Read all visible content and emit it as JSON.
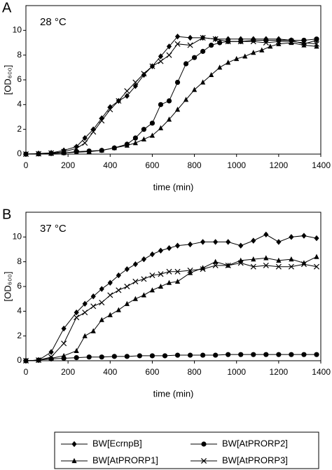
{
  "chart_data": [
    {
      "type": "line",
      "panel": "A",
      "annotation": "28 °C",
      "xlabel": "time (min)",
      "ylabel": "[OD₆₀₀]",
      "xlim": [
        0,
        1400
      ],
      "ylim": [
        0,
        12
      ],
      "xticks": [
        0,
        200,
        400,
        600,
        800,
        1000,
        1200,
        1400
      ],
      "yticks": [
        0,
        2,
        4,
        6,
        8,
        10
      ],
      "series": [
        {
          "name": "BW[EcrnpB]",
          "color": "#000000",
          "marker": "diamond",
          "x": [
            0,
            60,
            120,
            180,
            240,
            280,
            320,
            360,
            400,
            440,
            480,
            520,
            560,
            600,
            640,
            680,
            720,
            780,
            840,
            900,
            960,
            1020,
            1080,
            1140,
            1200,
            1260,
            1320,
            1380
          ],
          "values": [
            0,
            0.05,
            0.1,
            0.3,
            0.6,
            1.3,
            2.0,
            2.9,
            3.8,
            4.3,
            4.7,
            5.5,
            6.4,
            7.1,
            7.9,
            8.7,
            9.5,
            9.4,
            9.4,
            9.3,
            9.3,
            9.3,
            9.3,
            9.3,
            9.3,
            9.2,
            8.9,
            9.2
          ]
        },
        {
          "name": "BW[AtPRORP2]",
          "color": "#000000",
          "marker": "circle",
          "x": [
            0,
            60,
            120,
            180,
            240,
            300,
            360,
            420,
            480,
            520,
            560,
            600,
            640,
            680,
            720,
            760,
            800,
            840,
            880,
            920,
            960,
            1020,
            1080,
            1140,
            1200,
            1260,
            1320,
            1380
          ],
          "values": [
            0,
            0.02,
            0.05,
            0.1,
            0.2,
            0.25,
            0.3,
            0.5,
            0.8,
            1.3,
            2.0,
            2.5,
            4.0,
            4.3,
            5.8,
            7.3,
            7.8,
            8.3,
            8.8,
            9.0,
            9.1,
            9.1,
            9.2,
            9.2,
            9.2,
            9.2,
            9.2,
            9.3
          ]
        },
        {
          "name": "BW[AtPRORP1]",
          "color": "#000000",
          "marker": "triangle",
          "x": [
            0,
            60,
            120,
            180,
            240,
            300,
            360,
            420,
            480,
            520,
            560,
            600,
            640,
            680,
            720,
            760,
            800,
            840,
            880,
            920,
            960,
            1000,
            1040,
            1080,
            1120,
            1160,
            1200,
            1260,
            1320,
            1380
          ],
          "values": [
            0,
            0.02,
            0.05,
            0.1,
            0.15,
            0.2,
            0.3,
            0.5,
            0.7,
            0.9,
            1.2,
            1.5,
            2.1,
            2.8,
            3.6,
            4.4,
            5.2,
            5.8,
            6.4,
            7.0,
            7.4,
            7.7,
            7.9,
            8.2,
            8.4,
            8.7,
            8.9,
            9.0,
            8.8,
            8.7
          ]
        },
        {
          "name": "BW[AtPRORP3]",
          "color": "#000000",
          "marker": "x",
          "x": [
            0,
            60,
            120,
            180,
            240,
            280,
            320,
            360,
            400,
            440,
            480,
            520,
            560,
            600,
            640,
            680,
            720,
            780,
            840,
            900,
            960,
            1020,
            1080,
            1140,
            1200,
            1260,
            1320,
            1380
          ],
          "values": [
            0,
            0.03,
            0.08,
            0.2,
            0.45,
            0.9,
            1.8,
            2.7,
            3.6,
            4.3,
            5.1,
            5.8,
            6.5,
            7.1,
            7.5,
            8.0,
            8.9,
            8.8,
            9.4,
            9.3,
            9.1,
            9.1,
            9.1,
            9.0,
            9.1,
            9.1,
            9.0,
            8.9
          ]
        }
      ]
    },
    {
      "type": "line",
      "panel": "B",
      "annotation": "37 °C",
      "xlabel": "time (min)",
      "ylabel": "[OD₆₀₀]",
      "xlim": [
        0,
        1400
      ],
      "ylim": [
        0,
        12
      ],
      "xticks": [
        0,
        200,
        400,
        600,
        800,
        1000,
        1200,
        1400
      ],
      "yticks": [
        0,
        2,
        4,
        6,
        8,
        10
      ],
      "series": [
        {
          "color": "#000000",
          "marker": "diamond",
          "x": [
            0,
            60,
            120,
            180,
            240,
            280,
            320,
            360,
            400,
            440,
            480,
            520,
            560,
            600,
            640,
            680,
            720,
            780,
            840,
            900,
            960,
            1020,
            1080,
            1140,
            1200,
            1260,
            1320,
            1380
          ],
          "values": [
            0,
            0.05,
            0.7,
            2.6,
            3.9,
            4.6,
            5.2,
            5.8,
            6.3,
            6.9,
            7.4,
            7.8,
            8.2,
            8.6,
            8.9,
            9.1,
            9.3,
            9.4,
            9.6,
            9.6,
            9.6,
            9.3,
            9.7,
            10.2,
            9.6,
            10.0,
            10.1,
            9.9
          ]
        },
        {
          "color": "#000000",
          "marker": "circle",
          "x": [
            0,
            60,
            120,
            180,
            240,
            300,
            360,
            420,
            480,
            540,
            600,
            660,
            720,
            780,
            840,
            900,
            960,
            1020,
            1080,
            1140,
            1200,
            1260,
            1320,
            1380
          ],
          "values": [
            0,
            0.05,
            0.15,
            0.2,
            0.25,
            0.3,
            0.3,
            0.35,
            0.35,
            0.4,
            0.4,
            0.4,
            0.45,
            0.45,
            0.45,
            0.45,
            0.5,
            0.5,
            0.5,
            0.5,
            0.5,
            0.5,
            0.5,
            0.5
          ]
        },
        {
          "color": "#000000",
          "marker": "triangle",
          "x": [
            0,
            60,
            120,
            180,
            240,
            280,
            320,
            360,
            400,
            440,
            480,
            520,
            560,
            600,
            640,
            680,
            720,
            780,
            840,
            900,
            960,
            1020,
            1080,
            1140,
            1200,
            1260,
            1320,
            1380
          ],
          "values": [
            0,
            0.05,
            0.2,
            0.4,
            0.8,
            2.0,
            2.4,
            3.3,
            3.7,
            4.1,
            4.6,
            5.0,
            5.3,
            5.7,
            6.0,
            6.3,
            6.4,
            7.1,
            7.5,
            8.0,
            7.7,
            8.1,
            8.2,
            8.3,
            8.1,
            8.2,
            7.9,
            8.4
          ]
        },
        {
          "color": "#000000",
          "marker": "x",
          "x": [
            0,
            60,
            120,
            180,
            240,
            280,
            320,
            360,
            400,
            440,
            480,
            520,
            560,
            600,
            640,
            680,
            720,
            780,
            840,
            900,
            960,
            1020,
            1080,
            1140,
            1200,
            1260,
            1320,
            1380
          ],
          "values": [
            0,
            0.05,
            0.3,
            1.4,
            3.5,
            3.9,
            4.4,
            4.7,
            5.3,
            5.7,
            6.0,
            6.4,
            6.6,
            6.9,
            7.0,
            7.2,
            7.2,
            7.3,
            7.4,
            7.7,
            7.7,
            7.9,
            7.6,
            7.7,
            7.6,
            7.6,
            7.8,
            7.6
          ]
        }
      ]
    }
  ]
}
